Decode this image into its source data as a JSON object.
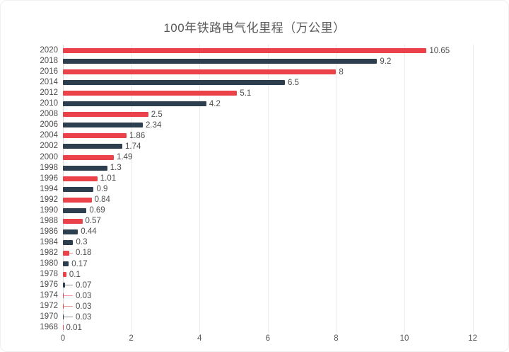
{
  "chart_data": {
    "type": "bar",
    "orientation": "horizontal",
    "title": "100年铁路电气化里程（万公里）",
    "xlabel": "",
    "ylabel": "",
    "xlim": [
      0,
      12
    ],
    "xticks": [
      0,
      2,
      4,
      6,
      8,
      10,
      12
    ],
    "grid": "vertical-light",
    "legend": "none",
    "palette": {
      "red": "#eb4148",
      "navy": "#2d3e4e"
    },
    "categories": [
      "2020",
      "2018",
      "2016",
      "2014",
      "2012",
      "2010",
      "2008",
      "2006",
      "2004",
      "2002",
      "2000",
      "1998",
      "1996",
      "1994",
      "1992",
      "1990",
      "1988",
      "1986",
      "1984",
      "1982",
      "1980",
      "1978",
      "1976",
      "1974",
      "1972",
      "1970",
      "1968"
    ],
    "values": [
      10.65,
      9.2,
      8,
      6.5,
      5.1,
      4.2,
      2.5,
      2.34,
      1.86,
      1.74,
      1.49,
      1.3,
      1.01,
      0.9,
      0.84,
      0.69,
      0.57,
      0.44,
      0.3,
      0.18,
      0.17,
      0.1,
      0.07,
      0.03,
      0.03,
      0.03,
      0.01
    ],
    "rows": [
      {
        "year": "2020",
        "value": 10.65,
        "label": "10.65",
        "color": "red",
        "leader": false
      },
      {
        "year": "2018",
        "value": 9.2,
        "label": "9.2",
        "color": "navy",
        "leader": false
      },
      {
        "year": "2016",
        "value": 8,
        "label": "8",
        "color": "red",
        "leader": false
      },
      {
        "year": "2014",
        "value": 6.5,
        "label": "6.5",
        "color": "navy",
        "leader": false
      },
      {
        "year": "2012",
        "value": 5.1,
        "label": "5.1",
        "color": "red",
        "leader": false
      },
      {
        "year": "2010",
        "value": 4.2,
        "label": "4.2",
        "color": "navy",
        "leader": false
      },
      {
        "year": "2008",
        "value": 2.5,
        "label": "2.5",
        "color": "red",
        "leader": false
      },
      {
        "year": "2006",
        "value": 2.34,
        "label": "2.34",
        "color": "navy",
        "leader": false
      },
      {
        "year": "2004",
        "value": 1.86,
        "label": "1.86",
        "color": "red",
        "leader": false
      },
      {
        "year": "2002",
        "value": 1.74,
        "label": "1.74",
        "color": "navy",
        "leader": false
      },
      {
        "year": "2000",
        "value": 1.49,
        "label": "1.49",
        "color": "red",
        "leader": false
      },
      {
        "year": "1998",
        "value": 1.3,
        "label": "1.3",
        "color": "navy",
        "leader": false
      },
      {
        "year": "1996",
        "value": 1.01,
        "label": "1.01",
        "color": "red",
        "leader": false
      },
      {
        "year": "1994",
        "value": 0.9,
        "label": "0.9",
        "color": "navy",
        "leader": false
      },
      {
        "year": "1992",
        "value": 0.84,
        "label": "0.84",
        "color": "red",
        "leader": false
      },
      {
        "year": "1990",
        "value": 0.69,
        "label": "0.69",
        "color": "navy",
        "leader": false
      },
      {
        "year": "1988",
        "value": 0.57,
        "label": "0.57",
        "color": "red",
        "leader": false
      },
      {
        "year": "1986",
        "value": 0.44,
        "label": "0.44",
        "color": "navy",
        "leader": false
      },
      {
        "year": "1984",
        "value": 0.3,
        "label": "0.3",
        "color": "navy",
        "leader": false
      },
      {
        "year": "1982",
        "value": 0.18,
        "label": "0.18",
        "color": "red",
        "leader": true
      },
      {
        "year": "1980",
        "value": 0.17,
        "label": "0.17",
        "color": "navy",
        "leader": false
      },
      {
        "year": "1978",
        "value": 0.1,
        "label": "0.1",
        "color": "red",
        "leader": false
      },
      {
        "year": "1976",
        "value": 0.07,
        "label": "0.07",
        "color": "navy",
        "leader": true
      },
      {
        "year": "1974",
        "value": 0.03,
        "label": "0.03",
        "color": "red",
        "leader": true
      },
      {
        "year": "1972",
        "value": 0.03,
        "label": "0.03",
        "color": "red",
        "leader": true
      },
      {
        "year": "1970",
        "value": 0.03,
        "label": "0.03",
        "color": "navy",
        "leader": true
      },
      {
        "year": "1968",
        "value": 0.01,
        "label": "0.01",
        "color": "red",
        "leader": false
      }
    ]
  },
  "layout_colors": {
    "title_text": "#595959",
    "axis_text": "#595959",
    "label_text": "#4d4d4d",
    "gridline": "#ececec",
    "zero_line": "#d9d9d9",
    "background": "#ffffff"
  }
}
